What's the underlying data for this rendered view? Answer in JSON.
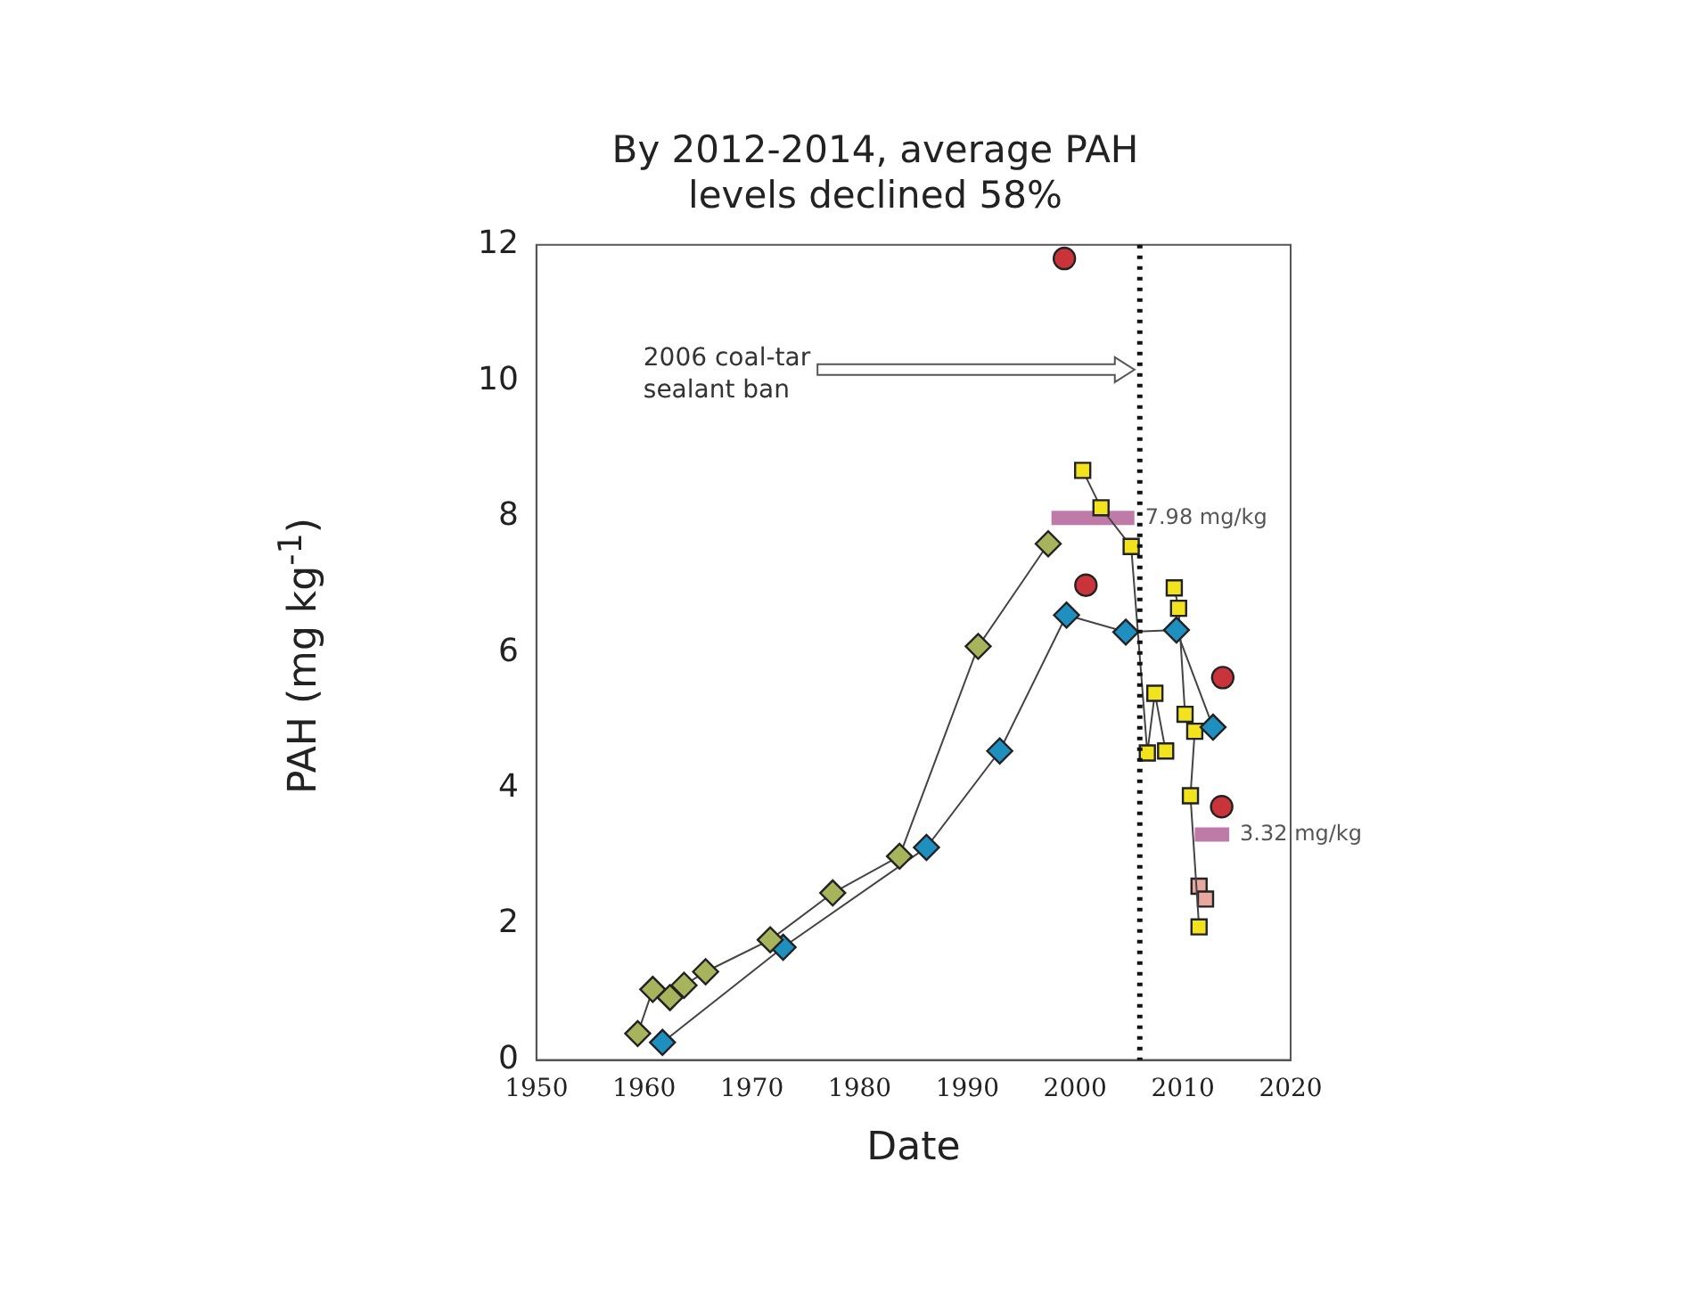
{
  "chart_data": {
    "type": "scatter",
    "title": "By 2012-2014, average PAH levels declined 58%",
    "xlabel": "Date",
    "ylabel": "PAH (mg kg$^{-1}$)",
    "xlim": [
      1950,
      2020
    ],
    "xticks": [
      1950,
      1960,
      1970,
      1980,
      1990,
      2000,
      2010,
      2020
    ],
    "ylim": [
      0,
      12
    ],
    "yticks": [
      0,
      2,
      4,
      6,
      8,
      10,
      12
    ],
    "grid": false,
    "legend": false,
    "series": [
      {
        "type": "line",
        "marker": "diamond",
        "color": "#a8b45c",
        "x": [
          1959.4,
          1960.8,
          1962.4,
          1963.7,
          1965.7,
          1971.7,
          1977.5,
          1983.7,
          1991.0,
          1997.5
        ],
        "values": [
          0.39,
          1.04,
          0.92,
          1.1,
          1.3,
          1.77,
          2.46,
          3.0,
          6.09,
          7.6
        ]
      },
      {
        "type": "line",
        "marker": "diamond",
        "color": "#1f8fc0",
        "x": [
          1961.7,
          1972.9,
          1986.2,
          1993.0,
          1999.2,
          2004.7,
          2009.4,
          2012.8
        ],
        "values": [
          0.26,
          1.66,
          3.13,
          4.55,
          6.55,
          6.3,
          6.33,
          4.9
        ]
      },
      {
        "type": "line",
        "marker": "square",
        "color": "#f2e31f",
        "x": [
          2000.7,
          2002.4,
          2005.2,
          2006.7,
          2007.4,
          2008.4
        ],
        "values": [
          8.68,
          8.13,
          7.56,
          4.52,
          5.4,
          4.55
        ]
      },
      {
        "type": "line",
        "marker": "square",
        "color": "#f2e31f",
        "x": [
          2009.2,
          2009.6,
          2010.2,
          2011.1,
          2010.7,
          2011.5
        ],
        "values": [
          6.95,
          6.65,
          5.09,
          4.84,
          3.89,
          1.96
        ]
      },
      {
        "type": "scatter",
        "marker": "square",
        "color": "#e8a8a0",
        "x": [
          2011.5,
          2012.1
        ],
        "values": [
          2.56,
          2.37
        ]
      },
      {
        "type": "scatter",
        "marker": "circle",
        "color": "#c8343a",
        "x": [
          1999.0,
          2001.0,
          2013.7,
          2013.6
        ],
        "values": [
          11.8,
          6.99,
          5.63,
          3.73
        ]
      },
      {
        "type": "line",
        "marker": "none",
        "color": "#c07aa8",
        "x": [
          1997.8,
          2005.5
        ],
        "values": [
          7.98,
          7.98
        ]
      },
      {
        "type": "line",
        "marker": "none",
        "color": "#c07aa8",
        "x": [
          2011.1,
          2014.3
        ],
        "values": [
          3.32,
          3.32
        ]
      }
    ],
    "ref_lines": [
      {
        "axis": "x",
        "value": 2006,
        "label": "2006 coal-tar sealant ban",
        "line_style": "dotted",
        "color": "#111111"
      }
    ],
    "annotations": [
      {
        "text": "7.98 mg/kg",
        "x": 2005.5,
        "y": 7.98
      },
      {
        "text": "3.32 mg/kg",
        "x": 2014.3,
        "y": 3.32
      }
    ]
  }
}
